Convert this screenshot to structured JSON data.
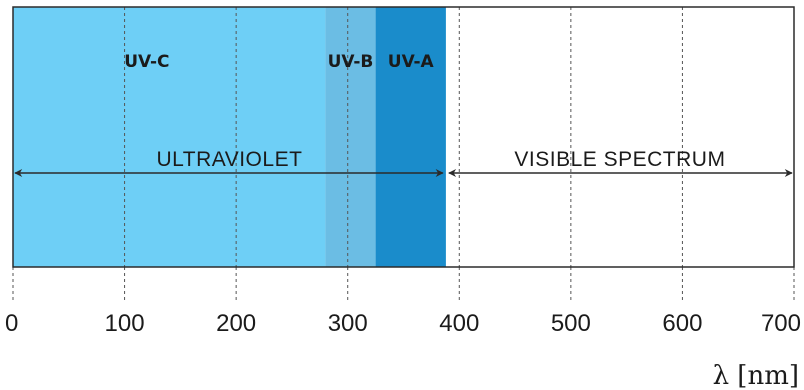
{
  "scale": {
    "min": 0,
    "max": 700,
    "ticks": [
      0,
      100,
      200,
      300,
      400,
      500,
      600,
      700
    ],
    "tick_labels": [
      "0",
      "100",
      "200",
      "300",
      "400",
      "500",
      "600",
      "700"
    ],
    "axis_label": "λ [nm]"
  },
  "bands": [
    {
      "label": "UV-C",
      "from": 0,
      "to": 280,
      "color": "#6ecff6"
    },
    {
      "label": "UV-B",
      "from": 280,
      "to": 325,
      "color": "#6bbde4"
    },
    {
      "label": "UV-A",
      "from": 325,
      "to": 388,
      "color": "#1a8ccb"
    }
  ],
  "spans": [
    {
      "label": "ULTRAVIOLET",
      "from": 0,
      "to": 388
    },
    {
      "label": "VISIBLE SPECTRUM",
      "from": 388,
      "to": 700
    }
  ],
  "colors": {
    "frame": "#2b2b2b",
    "gridline": "#555555",
    "text": "#1b1b1b"
  }
}
